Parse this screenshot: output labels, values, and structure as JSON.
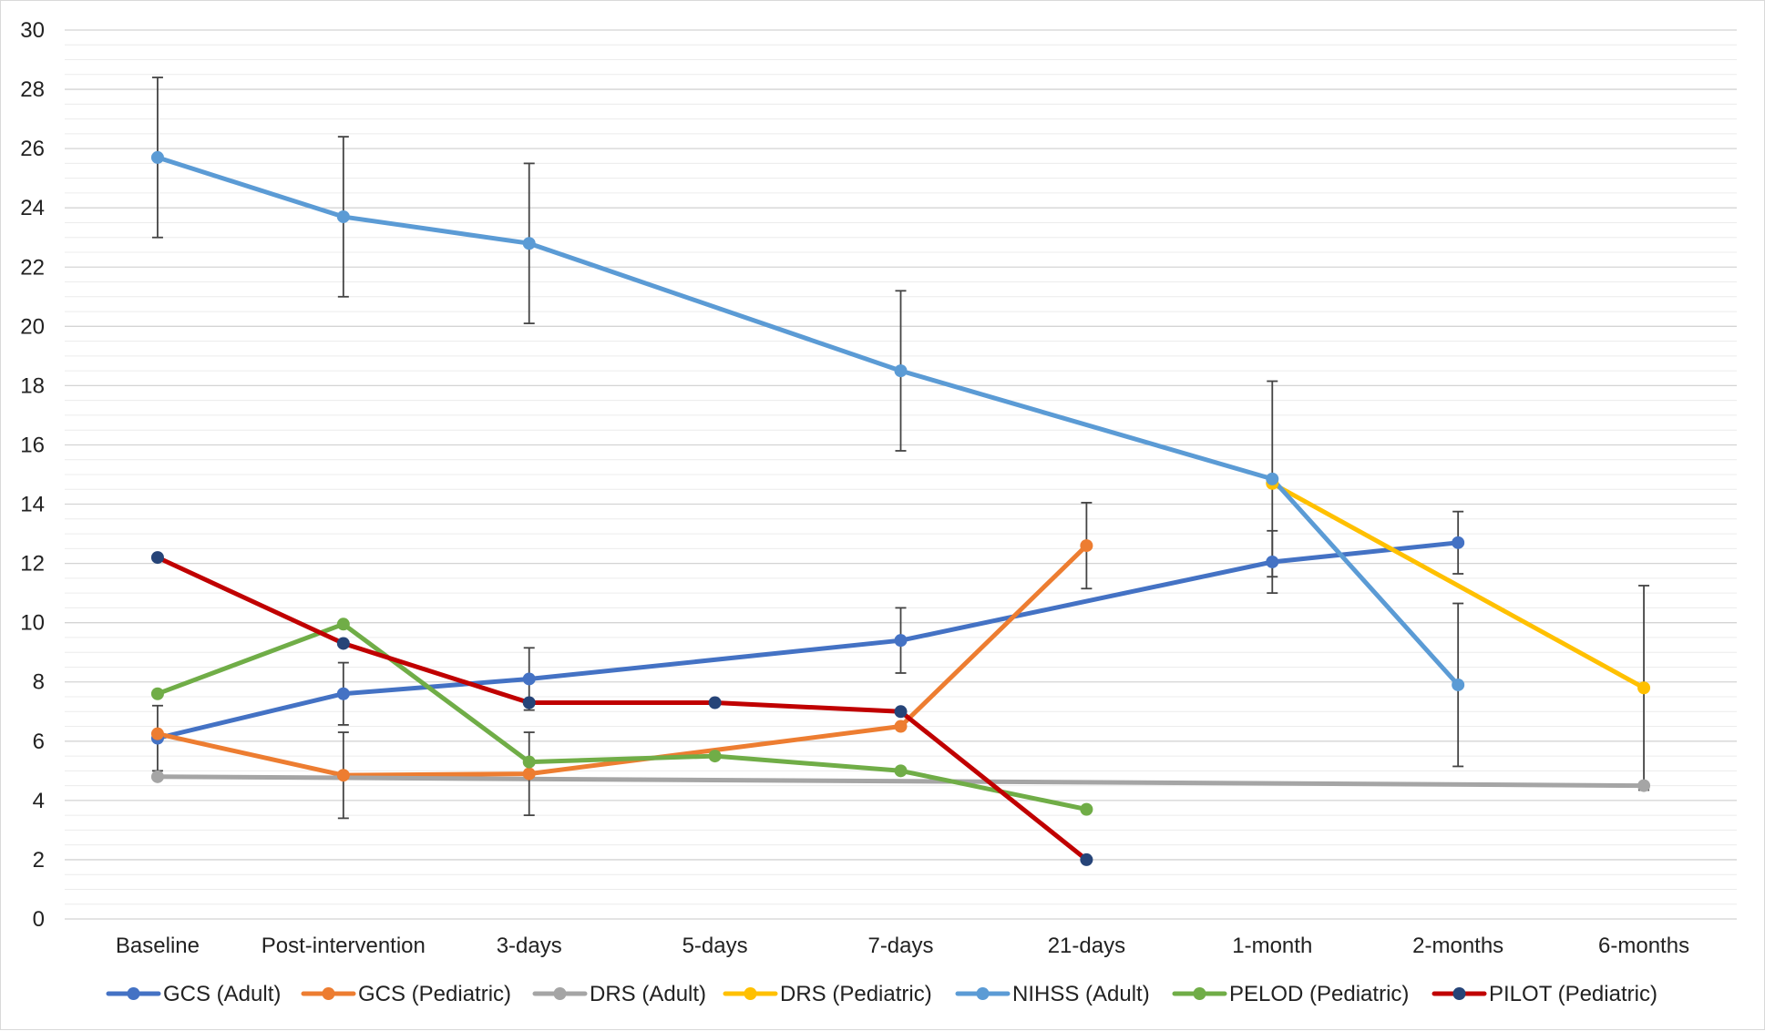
{
  "chart_data": {
    "type": "line",
    "title": "",
    "xlabel": "",
    "ylabel": "",
    "ylim": [
      0,
      30
    ],
    "yticks": [
      "0",
      "2",
      "4",
      "6",
      "8",
      "10",
      "12",
      "14",
      "16",
      "18",
      "20",
      "22",
      "24",
      "26",
      "28",
      "30"
    ],
    "categories": [
      "Baseline",
      "Post-intervention",
      "3-days",
      "5-days",
      "7-days",
      "21-days",
      "1-month",
      "2-months",
      "6-months"
    ],
    "legend_position": "bottom",
    "series": [
      {
        "name": "GCS (Adult)",
        "color": "#4472C4",
        "values": [
          6.1,
          7.6,
          8.1,
          null,
          9.4,
          null,
          12.05,
          12.7,
          null
        ],
        "errors": [
          1.1,
          1.05,
          1.05,
          null,
          1.1,
          null,
          1.05,
          1.05,
          null
        ]
      },
      {
        "name": "GCS (Pediatric)",
        "color": "#ED7D31",
        "values": [
          6.25,
          4.85,
          4.9,
          null,
          6.5,
          12.6,
          null,
          null,
          null
        ],
        "errors": [
          null,
          1.45,
          1.4,
          null,
          null,
          1.45,
          null,
          null,
          null
        ]
      },
      {
        "name": "DRS (Adult)",
        "color": "#A5A5A5",
        "values": [
          4.8,
          null,
          null,
          null,
          null,
          null,
          null,
          null,
          4.5
        ],
        "errors": [
          null,
          null,
          null,
          null,
          null,
          null,
          null,
          null,
          null
        ]
      },
      {
        "name": "DRS (Pediatric)",
        "color": "#FFC000",
        "values": [
          null,
          null,
          null,
          null,
          null,
          null,
          14.7,
          null,
          7.8
        ],
        "errors": [
          null,
          null,
          null,
          null,
          null,
          null,
          null,
          null,
          3.45
        ]
      },
      {
        "name": "NIHSS (Adult)",
        "color": "#5B9BD5",
        "values": [
          25.7,
          23.7,
          22.8,
          null,
          18.5,
          null,
          14.85,
          7.9,
          null
        ],
        "errors": [
          2.7,
          2.7,
          2.7,
          null,
          2.7,
          null,
          3.3,
          2.75,
          null
        ]
      },
      {
        "name": "PELOD (Pediatric)",
        "color": "#70AD47",
        "values": [
          7.6,
          9.95,
          5.3,
          5.5,
          5.0,
          3.7,
          null,
          null,
          null
        ],
        "errors": [
          null,
          null,
          null,
          null,
          null,
          null,
          null,
          null,
          null
        ]
      },
      {
        "name": "PILOT (Pediatric)",
        "color": "#264478",
        "line_color": "#C00000",
        "values": [
          12.2,
          9.3,
          7.3,
          7.3,
          7.0,
          2.0,
          null,
          null,
          null
        ],
        "errors": [
          null,
          null,
          null,
          null,
          null,
          null,
          null,
          null,
          null
        ]
      }
    ]
  }
}
